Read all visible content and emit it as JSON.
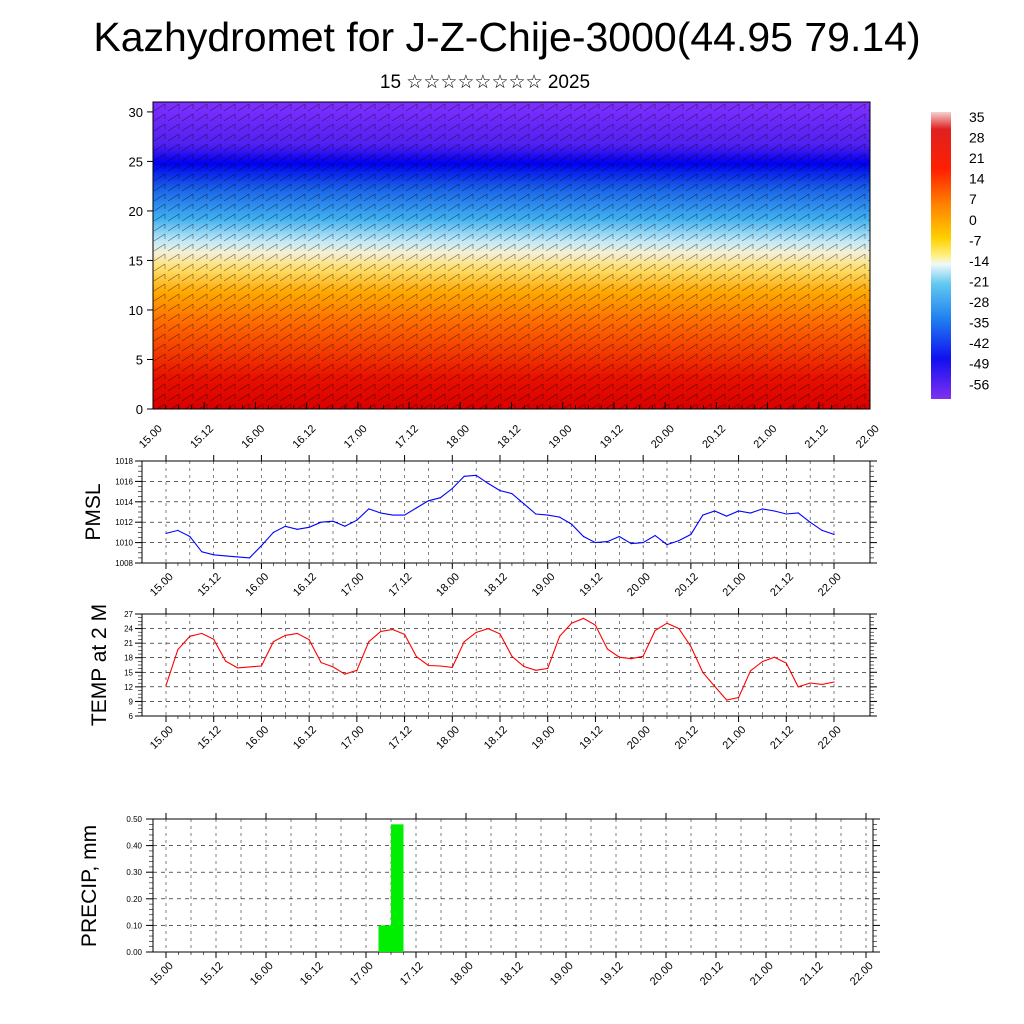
{
  "header": {
    "title": "Kazhydromet for J-Z-Chije-3000(44.95 79.14)",
    "subtitle": "15 ☆☆☆☆☆☆☆☆ 2025"
  },
  "chart_data": [
    {
      "type": "heatmap",
      "title": "Kazhydromet for J-Z-Chije-3000(44.95 79.14)",
      "ylim": [
        0,
        31
      ],
      "yticks": [
        0,
        5,
        10,
        15,
        20,
        25,
        30
      ],
      "x_tick_labels": [
        "15.00",
        "15.12",
        "16.00",
        "16.12",
        "17.00",
        "17.12",
        "18.00",
        "18.12",
        "19.00",
        "19.12",
        "20.00",
        "20.12",
        "21.00",
        "21.12",
        "22.00"
      ],
      "colorbar_labels": [
        "35",
        "28",
        "21",
        "14",
        "7",
        "0",
        "-7",
        "-14",
        "-21",
        "-28",
        "-35",
        "-42",
        "-49",
        "-56"
      ],
      "colorbar_values": [
        35,
        28,
        21,
        14,
        7,
        0,
        -7,
        -14,
        -21,
        -28,
        -35,
        -42,
        -49,
        -56
      ],
      "note_wind_barbs": true
    },
    {
      "type": "line",
      "ylabel": "PMSL",
      "ylim": [
        1008,
        1018
      ],
      "yticks": [
        1008,
        1010,
        1012,
        1014,
        1016,
        1018
      ],
      "x_tick_labels": [
        "15.00",
        "15.12",
        "16.00",
        "16.12",
        "17.00",
        "17.12",
        "18.00",
        "18.12",
        "19.00",
        "19.12",
        "20.00",
        "20.12",
        "21.00",
        "21.12",
        "22.00"
      ],
      "x": [
        0,
        3,
        6,
        9,
        12,
        15,
        18,
        21,
        24,
        27,
        30,
        33,
        36,
        39,
        42,
        45,
        48,
        51,
        54,
        57,
        60,
        63,
        66,
        69,
        72,
        75,
        78,
        81,
        84,
        87,
        90,
        93,
        96,
        99,
        102,
        105,
        108,
        111,
        114,
        117,
        120,
        123,
        126,
        129,
        132,
        135,
        138,
        141,
        144,
        147,
        150,
        153,
        156,
        159,
        162,
        165,
        168
      ],
      "series": [
        {
          "color": "#0000ff",
          "values": [
            1010.9,
            1011.2,
            1010.6,
            1009.1,
            1008.8,
            1008.7,
            1008.6,
            1008.5,
            1009.7,
            1011.0,
            1011.6,
            1011.3,
            1011.5,
            1012.0,
            1012.1,
            1011.6,
            1012.2,
            1013.3,
            1012.9,
            1012.7,
            1012.7,
            1013.4,
            1014.1,
            1014.4,
            1015.3,
            1016.5,
            1016.6,
            1015.8,
            1015.1,
            1014.8,
            1013.8,
            1012.8,
            1012.7,
            1012.5,
            1011.8,
            1010.6,
            1010.0,
            1010.1,
            1010.6,
            1009.9,
            1010.0,
            1010.7,
            1009.8,
            1010.2,
            1010.8,
            1012.7,
            1013.1,
            1012.6,
            1013.1,
            1012.9,
            1013.3,
            1013.1,
            1012.8,
            1012.9,
            1012.0,
            1011.2,
            1010.8
          ]
        }
      ]
    },
    {
      "type": "line",
      "ylabel": "TEMP at 2 M",
      "ylim": [
        6,
        27
      ],
      "yticks": [
        6,
        9,
        12,
        15,
        18,
        21,
        24,
        27
      ],
      "x_tick_labels": [
        "15.00",
        "15.12",
        "16.00",
        "16.12",
        "17.00",
        "17.12",
        "18.00",
        "18.12",
        "19.00",
        "19.12",
        "20.00",
        "20.12",
        "21.00",
        "21.12",
        "22.00"
      ],
      "x": [
        0,
        3,
        6,
        9,
        12,
        15,
        18,
        21,
        24,
        27,
        30,
        33,
        36,
        39,
        42,
        45,
        48,
        51,
        54,
        57,
        60,
        63,
        66,
        69,
        72,
        75,
        78,
        81,
        84,
        87,
        90,
        93,
        96,
        99,
        102,
        105,
        108,
        111,
        114,
        117,
        120,
        123,
        126,
        129,
        132,
        135,
        138,
        141,
        144,
        147,
        150,
        153,
        156,
        159,
        162,
        165,
        168
      ],
      "series": [
        {
          "color": "#ff0000",
          "values": [
            12.3,
            19.7,
            22.4,
            23.0,
            21.8,
            17.3,
            15.9,
            16.1,
            16.3,
            21.3,
            22.6,
            23.0,
            21.7,
            17.0,
            16.1,
            14.6,
            15.4,
            21.3,
            23.4,
            23.8,
            22.8,
            18.2,
            16.4,
            16.3,
            16.0,
            21.3,
            23.2,
            24.0,
            22.9,
            18.3,
            16.2,
            15.4,
            15.8,
            22.4,
            25.1,
            26.1,
            24.7,
            19.8,
            18.1,
            17.8,
            18.3,
            23.6,
            25.1,
            24.0,
            20.3,
            15.0,
            12.1,
            9.3,
            9.8,
            15.3,
            17.2,
            18.1,
            16.9,
            12.0,
            12.8,
            12.5,
            13.0
          ]
        }
      ]
    },
    {
      "type": "bar",
      "ylabel": "PRECIP, mm",
      "ylim": [
        0,
        0.5
      ],
      "yticks": [
        "0.00",
        "0.10",
        "0.20",
        "0.30",
        "0.40",
        "0.50"
      ],
      "x_tick_labels": [
        "15.00",
        "15.12",
        "16.00",
        "16.12",
        "17.00",
        "17.12",
        "18.00",
        "18.12",
        "19.00",
        "19.12",
        "20.00",
        "20.12",
        "21.00",
        "21.12",
        "22.00"
      ],
      "bars": [
        {
          "x_start": 51,
          "x_end": 54,
          "value": 0.1
        },
        {
          "x_start": 54,
          "x_end": 57,
          "value": 0.48
        }
      ],
      "bar_color": "#00ee00"
    }
  ]
}
